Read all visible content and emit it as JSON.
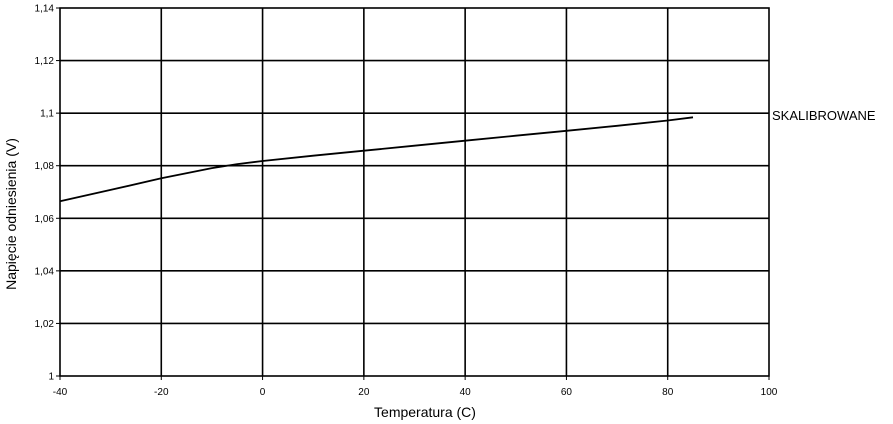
{
  "chart_data": {
    "type": "line",
    "title": "",
    "xlabel": "Temperatura (C)",
    "ylabel": "Napięcie odniesienia (V)",
    "xlim": [
      -40,
      100
    ],
    "ylim": [
      1,
      1.14
    ],
    "x_ticks": [
      -40,
      -20,
      0,
      20,
      40,
      60,
      80,
      100
    ],
    "x_tick_labels": [
      "-40",
      "-20",
      "0",
      "20",
      "40",
      "60",
      "80",
      "100"
    ],
    "y_ticks": [
      1,
      1.02,
      1.04,
      1.06,
      1.08,
      1.1,
      1.12,
      1.14
    ],
    "y_tick_labels": [
      "1",
      "1,02",
      "1,04",
      "1,06",
      "1,08",
      "1,1",
      "1,12",
      "1,14"
    ],
    "grid": true,
    "series": [
      {
        "name": "SKALIBROWANE",
        "color": "#000000",
        "x": [
          -40,
          -30,
          -20,
          -10,
          -5,
          0,
          10,
          20,
          30,
          40,
          50,
          60,
          70,
          80,
          85
        ],
        "y": [
          1.0665,
          1.0708,
          1.0752,
          1.0791,
          1.0806,
          1.0818,
          1.0838,
          1.0857,
          1.0876,
          1.0895,
          1.0914,
          1.0933,
          1.0952,
          1.0972,
          1.0984
        ]
      }
    ]
  }
}
